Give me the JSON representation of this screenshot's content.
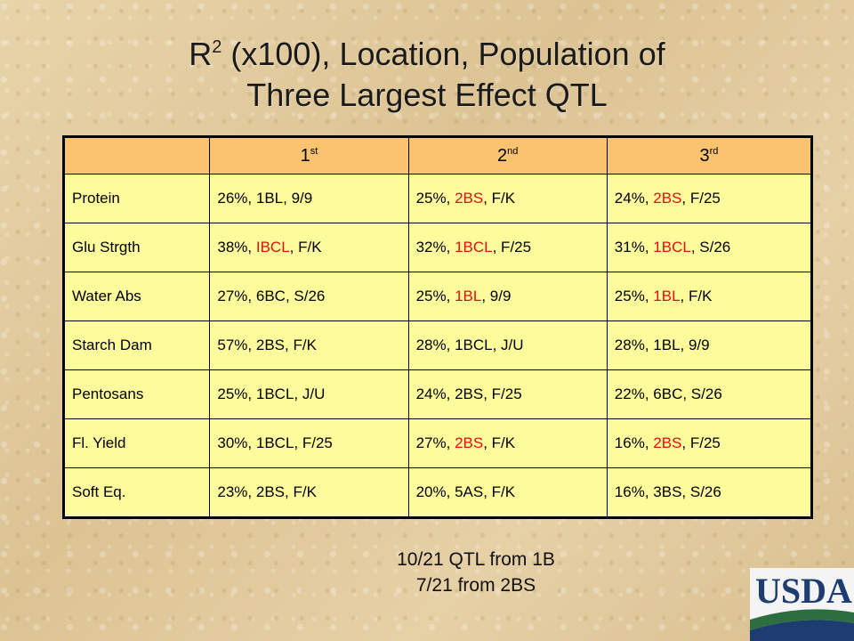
{
  "title": {
    "r": "R",
    "sup": "2",
    "line1_rest": " (x100), Location, Population of",
    "line2": "Three Largest Effect QTL"
  },
  "table": {
    "headers": [
      {
        "num": "",
        "sup": ""
      },
      {
        "num": "1",
        "sup": "st"
      },
      {
        "num": "2",
        "sup": "nd"
      },
      {
        "num": "3",
        "sup": "rd"
      }
    ],
    "rows": [
      {
        "label": "Protein",
        "cells": [
          {
            "pre": "26%, ",
            "loc": "1BL",
            "post": ", 9/9",
            "red": false
          },
          {
            "pre": "25%, ",
            "loc": "2BS",
            "post": ", F/K",
            "red": true
          },
          {
            "pre": "24%, ",
            "loc": "2BS",
            "post": ", F/25",
            "red": true
          }
        ]
      },
      {
        "label": "Glu Strgth",
        "cells": [
          {
            "pre": "38%, ",
            "loc": "IBCL",
            "post": ", F/K",
            "red": true
          },
          {
            "pre": "32%, ",
            "loc": "1BCL",
            "post": ", F/25",
            "red": true
          },
          {
            "pre": "31%, ",
            "loc": "1BCL",
            "post": ", S/26",
            "red": true
          }
        ]
      },
      {
        "label": "Water Abs",
        "cells": [
          {
            "pre": "27%, ",
            "loc": "6BC",
            "post": ", S/26",
            "red": false
          },
          {
            "pre": "25%, ",
            "loc": "1BL",
            "post": ", 9/9",
            "red": true
          },
          {
            "pre": "25%, ",
            "loc": "1BL",
            "post": ", F/K",
            "red": true
          }
        ]
      },
      {
        "label": "Starch Dam",
        "cells": [
          {
            "pre": "57%, ",
            "loc": "2BS",
            "post": ", F/K",
            "red": false
          },
          {
            "pre": "28%, ",
            "loc": "1BCL",
            "post": ", J/U",
            "red": false
          },
          {
            "pre": "28%, ",
            "loc": "1BL",
            "post": ", 9/9",
            "red": false
          }
        ]
      },
      {
        "label": "Pentosans",
        "cells": [
          {
            "pre": "25%, ",
            "loc": "1BCL",
            "post": ", J/U",
            "red": false
          },
          {
            "pre": "24%, ",
            "loc": "2BS",
            "post": ", F/25",
            "red": false
          },
          {
            "pre": "22%, ",
            "loc": "6BC",
            "post": ", S/26",
            "red": false
          }
        ]
      },
      {
        "label": "Fl. Yield",
        "cells": [
          {
            "pre": "30%, ",
            "loc": "1BCL",
            "post": ", F/25",
            "red": false
          },
          {
            "pre": "27%, ",
            "loc": "2BS",
            "post": ", F/K",
            "red": true
          },
          {
            "pre": "16%, ",
            "loc": "2BS",
            "post": ", F/25",
            "red": true
          }
        ]
      },
      {
        "label": "Soft Eq.",
        "cells": [
          {
            "pre": "23%, ",
            "loc": "2BS",
            "post": ", F/K",
            "red": false
          },
          {
            "pre": "20%, ",
            "loc": "5AS",
            "post": ", F/K",
            "red": false
          },
          {
            "pre": "16%, ",
            "loc": "3BS",
            "post": ", S/26",
            "red": false
          }
        ]
      }
    ]
  },
  "note": {
    "line1": "10/21 QTL from 1B",
    "line2": "7/21 from 2BS"
  },
  "logo": {
    "text": "USDA"
  },
  "colors": {
    "header_fill": "#f9c370",
    "cell_fill": "#fefb9c",
    "highlight": "#e01010"
  }
}
